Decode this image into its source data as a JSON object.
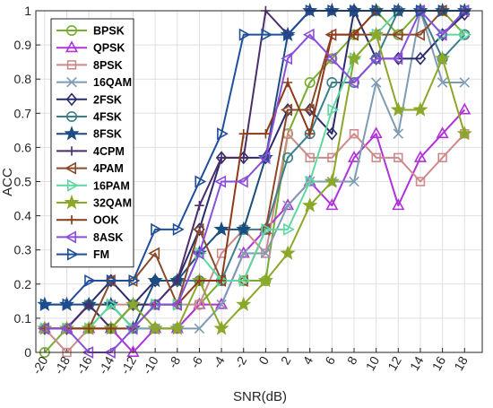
{
  "chart_data": {
    "type": "line",
    "xlabel": "SNR(dB)",
    "ylabel": "ACC",
    "x": [
      -20,
      -18,
      -16,
      -14,
      -12,
      -10,
      -8,
      -6,
      -4,
      -2,
      0,
      2,
      4,
      6,
      8,
      10,
      12,
      14,
      16,
      18
    ],
    "xticks": [
      "-20",
      "-18",
      "-16",
      "-14",
      "-12",
      "-10",
      "-8",
      "-6",
      "-4",
      "-2",
      "0",
      "2",
      "4",
      "6",
      "8",
      "10",
      "12",
      "14",
      "16",
      "18"
    ],
    "yticks": [
      "0",
      "0.1",
      "0.2",
      "0.3",
      "0.4",
      "0.5",
      "0.6",
      "0.7",
      "0.8",
      "0.9",
      "1"
    ],
    "xlim": [
      -20.8,
      19.6
    ],
    "ylim": [
      0,
      1
    ],
    "grid": true,
    "legend_position": "top-left",
    "series": [
      {
        "name": "BPSK",
        "color": "#77ac30",
        "marker": "circle",
        "values": [
          0.0,
          0.07,
          0.07,
          0.07,
          0.07,
          0.07,
          0.07,
          0.14,
          0.21,
          0.21,
          0.21,
          0.64,
          0.79,
          0.86,
          0.93,
          1.0,
          0.93,
          1.0,
          1.0,
          0.93
        ]
      },
      {
        "name": "QPSK",
        "color": "#b032d8",
        "marker": "triangle-up",
        "values": [
          0.07,
          0.07,
          0.07,
          0.07,
          0.0,
          0.07,
          0.07,
          0.14,
          0.14,
          0.29,
          0.36,
          0.43,
          0.5,
          0.43,
          0.57,
          0.64,
          0.43,
          0.57,
          0.64,
          0.71
        ]
      },
      {
        "name": "8PSK",
        "color": "#cc8a8a",
        "marker": "square",
        "values": [
          0.07,
          0.0,
          0.07,
          0.14,
          0.14,
          0.14,
          0.14,
          0.14,
          0.29,
          0.36,
          0.29,
          0.64,
          0.57,
          0.57,
          0.64,
          0.57,
          0.57,
          0.5,
          0.57,
          0.64
        ]
      },
      {
        "name": "16QAM",
        "color": "#7f9bb3",
        "marker": "x",
        "values": [
          0.07,
          0.07,
          0.14,
          0.14,
          0.07,
          0.07,
          0.07,
          0.07,
          0.14,
          0.29,
          0.29,
          0.43,
          0.5,
          0.5,
          0.5,
          0.79,
          0.64,
          1.0,
          0.79,
          0.79
        ]
      },
      {
        "name": "2FSK",
        "color": "#2b2b6b",
        "marker": "diamond",
        "values": [
          0.07,
          0.07,
          0.14,
          0.21,
          0.14,
          0.21,
          0.21,
          0.36,
          0.57,
          0.57,
          0.57,
          0.71,
          0.71,
          0.64,
          1.0,
          0.86,
          0.86,
          0.86,
          0.93,
          0.99
        ]
      },
      {
        "name": "4FSK",
        "color": "#3c7f8c",
        "marker": "circle",
        "values": [
          0.07,
          0.07,
          0.14,
          0.07,
          0.14,
          0.14,
          0.21,
          0.21,
          0.21,
          0.36,
          0.36,
          0.57,
          0.64,
          0.79,
          0.79,
          0.86,
          1.0,
          1.0,
          0.86,
          0.93
        ]
      },
      {
        "name": "8FSK",
        "color": "#1a4d80",
        "marker": "star",
        "values": [
          0.14,
          0.14,
          0.14,
          0.14,
          0.07,
          0.21,
          0.21,
          0.29,
          0.36,
          0.36,
          0.57,
          0.93,
          1.0,
          1.0,
          1.0,
          1.0,
          1.0,
          1.0,
          1.0,
          1.0
        ]
      },
      {
        "name": "4CPM",
        "color": "#4b2d6b",
        "marker": "plus",
        "values": [
          0.07,
          0.07,
          0.14,
          0.07,
          0.14,
          0.14,
          0.21,
          0.43,
          0.57,
          0.57,
          1.0,
          0.93,
          1.0,
          1.0,
          1.0,
          1.0,
          1.0,
          1.0,
          1.0,
          1.0
        ]
      },
      {
        "name": "4PAM",
        "color": "#8a4a2a",
        "marker": "triangle-left",
        "values": [
          0.07,
          0.07,
          0.07,
          0.21,
          0.21,
          0.29,
          0.14,
          0.36,
          0.21,
          0.21,
          0.36,
          0.71,
          0.71,
          0.93,
          0.93,
          0.93,
          0.93,
          0.93,
          1.0,
          1.0
        ]
      },
      {
        "name": "16PAM",
        "color": "#5fd8a0",
        "marker": "triangle-right",
        "values": [
          0.07,
          0.07,
          0.07,
          0.14,
          0.07,
          0.14,
          0.14,
          0.29,
          0.21,
          0.21,
          0.36,
          0.36,
          0.5,
          0.71,
          0.86,
          0.93,
          1.0,
          1.0,
          0.93,
          0.93
        ]
      },
      {
        "name": "32QAM",
        "color": "#8ba82a",
        "marker": "star",
        "values": [
          0.07,
          0.07,
          0.07,
          0.07,
          0.14,
          0.07,
          0.07,
          0.21,
          0.07,
          0.14,
          0.21,
          0.29,
          0.43,
          0.5,
          0.86,
          0.93,
          0.71,
          0.71,
          0.86,
          0.64
        ]
      },
      {
        "name": "OOK",
        "color": "#8c3a1a",
        "marker": "plus",
        "values": [
          0.07,
          0.07,
          0.07,
          0.07,
          0.07,
          0.14,
          0.14,
          0.21,
          0.21,
          0.64,
          0.64,
          0.79,
          0.64,
          0.93,
          0.93,
          1.0,
          1.0,
          1.0,
          1.0,
          1.0
        ]
      },
      {
        "name": "8ASK",
        "color": "#8a4fd8",
        "marker": "triangle-left",
        "values": [
          0.07,
          0.07,
          0.0,
          0.0,
          0.07,
          0.14,
          0.14,
          0.29,
          0.5,
          0.5,
          0.57,
          0.86,
          0.93,
          0.86,
          0.79,
          0.86,
          0.86,
          1.0,
          0.93,
          1.0
        ]
      },
      {
        "name": "FM",
        "color": "#1f4e9a",
        "marker": "triangle-right",
        "values": [
          0.14,
          0.14,
          0.21,
          0.21,
          0.21,
          0.36,
          0.36,
          0.5,
          0.64,
          0.93,
          0.93,
          0.93,
          1.0,
          1.0,
          1.0,
          1.0,
          1.0,
          1.0,
          1.0,
          1.0
        ]
      }
    ]
  }
}
